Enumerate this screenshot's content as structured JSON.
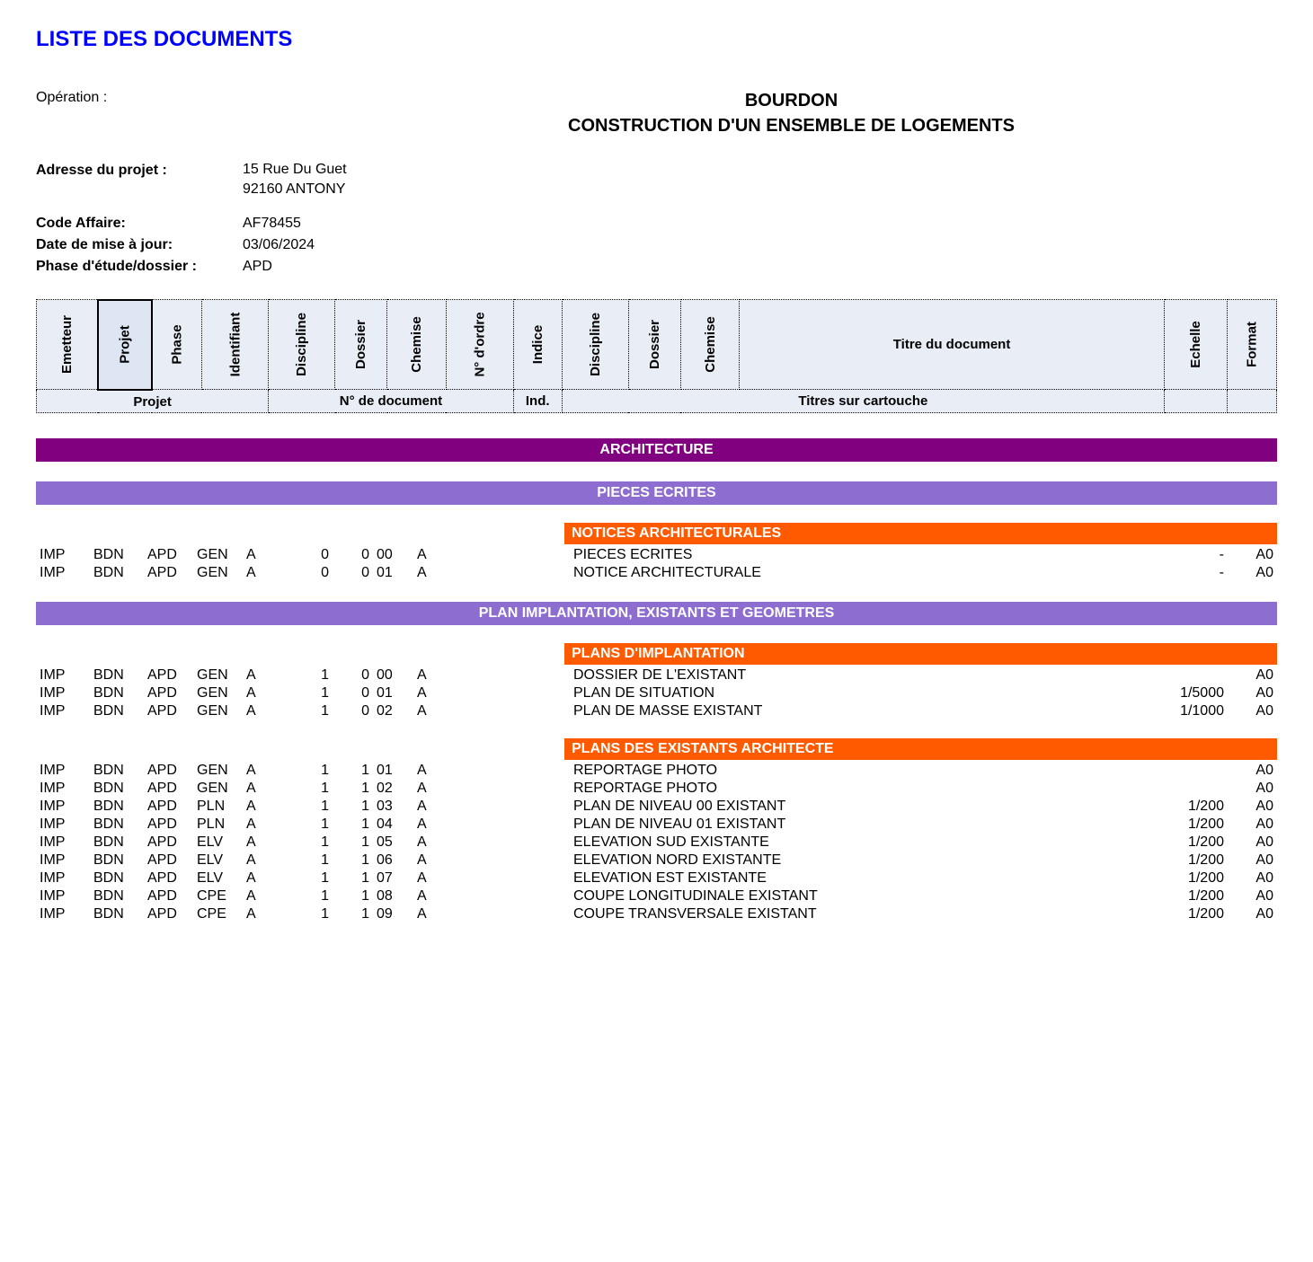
{
  "page_title": "LISTE DES DOCUMENTS",
  "labels": {
    "operation": "Opération :",
    "adresse": "Adresse du projet :",
    "code_affaire": "Code Affaire:",
    "date_maj": "Date de mise à jour:",
    "phase": "Phase d'étude/dossier :"
  },
  "operation": {
    "line1": "BOURDON",
    "line2": "CONSTRUCTION D'UN ENSEMBLE DE LOGEMENTS"
  },
  "adresse": {
    "line1": "15 Rue Du Guet",
    "line2": "92160 ANTONY"
  },
  "code_affaire": "AF78455",
  "date_maj": "03/06/2024",
  "phase": "APD",
  "header_row1": {
    "emetteur": "Emetteur",
    "projet": "Projet",
    "phase": "Phase",
    "identifiant": "Identifiant",
    "discipline": "Discipline",
    "dossier": "Dossier",
    "chemise": "Chemise",
    "n_ordre": "N° d'ordre",
    "indice": "Indice",
    "discipline2": "Discipline",
    "dossier2": "Dossier",
    "chemise2": "Chemise",
    "titre": "Titre du document",
    "echelle": "Echelle",
    "format": "Format"
  },
  "header_row2": {
    "projet": "Projet",
    "n_doc": "N° de document",
    "ind": "Ind.",
    "titres": "Titres sur cartouche"
  },
  "colors": {
    "title": "#0000ff",
    "section_dark": "#800080",
    "section_med": "#8d6ed0",
    "subhead": "#ff5a00",
    "header_bg": "#e9eef6"
  },
  "sections": [
    {
      "level": "dark",
      "label": "ARCHITECTURE",
      "children": [
        {
          "level": "med",
          "label": "PIECES ECRITES",
          "children": [
            {
              "level": "sub",
              "label": "NOTICES ARCHITECTURALES",
              "rows": [
                {
                  "emet": "IMP",
                  "proj": "BDN",
                  "phase": "APD",
                  "ident": "GEN",
                  "disc": "A",
                  "doss": "0",
                  "chem": "0",
                  "nord": "00",
                  "ind": "A",
                  "tit": "PIECES ECRITES",
                  "ech": "-",
                  "fmt": "A0"
                },
                {
                  "emet": "IMP",
                  "proj": "BDN",
                  "phase": "APD",
                  "ident": "GEN",
                  "disc": "A",
                  "doss": "0",
                  "chem": "0",
                  "nord": "01",
                  "ind": "A",
                  "tit": "NOTICE ARCHITECTURALE",
                  "ech": "-",
                  "fmt": "A0"
                }
              ]
            }
          ]
        },
        {
          "level": "med",
          "label": "PLAN IMPLANTATION, EXISTANTS ET GEOMETRES",
          "children": [
            {
              "level": "sub",
              "label": "PLANS  D'IMPLANTATION",
              "rows": [
                {
                  "emet": "IMP",
                  "proj": "BDN",
                  "phase": "APD",
                  "ident": "GEN",
                  "disc": "A",
                  "doss": "1",
                  "chem": "0",
                  "nord": "00",
                  "ind": "A",
                  "tit": "DOSSIER DE L'EXISTANT",
                  "ech": "",
                  "fmt": "A0"
                },
                {
                  "emet": "IMP",
                  "proj": "BDN",
                  "phase": "APD",
                  "ident": "GEN",
                  "disc": "A",
                  "doss": "1",
                  "chem": "0",
                  "nord": "01",
                  "ind": "A",
                  "tit": "PLAN DE SITUATION",
                  "ech": "1/5000",
                  "fmt": "A0"
                },
                {
                  "emet": "IMP",
                  "proj": "BDN",
                  "phase": "APD",
                  "ident": "GEN",
                  "disc": "A",
                  "doss": "1",
                  "chem": "0",
                  "nord": "02",
                  "ind": "A",
                  "tit": "PLAN DE MASSE EXISTANT",
                  "ech": "1/1000",
                  "fmt": "A0"
                }
              ]
            },
            {
              "level": "sub",
              "label": "PLANS  DES EXISTANTS ARCHITECTE",
              "rows": [
                {
                  "emet": "IMP",
                  "proj": "BDN",
                  "phase": "APD",
                  "ident": "GEN",
                  "disc": "A",
                  "doss": "1",
                  "chem": "1",
                  "nord": "01",
                  "ind": "A",
                  "tit": "REPORTAGE PHOTO",
                  "ech": "",
                  "fmt": "A0"
                },
                {
                  "emet": "IMP",
                  "proj": "BDN",
                  "phase": "APD",
                  "ident": "GEN",
                  "disc": "A",
                  "doss": "1",
                  "chem": "1",
                  "nord": "02",
                  "ind": "A",
                  "tit": "REPORTAGE PHOTO",
                  "ech": "",
                  "fmt": "A0"
                },
                {
                  "emet": "IMP",
                  "proj": "BDN",
                  "phase": "APD",
                  "ident": "PLN",
                  "disc": "A",
                  "doss": "1",
                  "chem": "1",
                  "nord": "03",
                  "ind": "A",
                  "tit": "PLAN DE NIVEAU 00 EXISTANT",
                  "ech": "1/200",
                  "fmt": "A0"
                },
                {
                  "emet": "IMP",
                  "proj": "BDN",
                  "phase": "APD",
                  "ident": "PLN",
                  "disc": "A",
                  "doss": "1",
                  "chem": "1",
                  "nord": "04",
                  "ind": "A",
                  "tit": "PLAN DE NIVEAU 01 EXISTANT",
                  "ech": "1/200",
                  "fmt": "A0"
                },
                {
                  "emet": "IMP",
                  "proj": "BDN",
                  "phase": "APD",
                  "ident": "ELV",
                  "disc": "A",
                  "doss": "1",
                  "chem": "1",
                  "nord": "05",
                  "ind": "A",
                  "tit": "ELEVATION SUD EXISTANTE",
                  "ech": "1/200",
                  "fmt": "A0"
                },
                {
                  "emet": "IMP",
                  "proj": "BDN",
                  "phase": "APD",
                  "ident": "ELV",
                  "disc": "A",
                  "doss": "1",
                  "chem": "1",
                  "nord": "06",
                  "ind": "A",
                  "tit": "ELEVATION NORD EXISTANTE",
                  "ech": "1/200",
                  "fmt": "A0"
                },
                {
                  "emet": "IMP",
                  "proj": "BDN",
                  "phase": "APD",
                  "ident": "ELV",
                  "disc": "A",
                  "doss": "1",
                  "chem": "1",
                  "nord": "07",
                  "ind": "A",
                  "tit": "ELEVATION EST EXISTANTE",
                  "ech": "1/200",
                  "fmt": "A0"
                },
                {
                  "emet": "IMP",
                  "proj": "BDN",
                  "phase": "APD",
                  "ident": "CPE",
                  "disc": "A",
                  "doss": "1",
                  "chem": "1",
                  "nord": "08",
                  "ind": "A",
                  "tit": "COUPE LONGITUDINALE EXISTANT",
                  "ech": "1/200",
                  "fmt": "A0"
                },
                {
                  "emet": "IMP",
                  "proj": "BDN",
                  "phase": "APD",
                  "ident": "CPE",
                  "disc": "A",
                  "doss": "1",
                  "chem": "1",
                  "nord": "09",
                  "ind": "A",
                  "tit": "COUPE TRANSVERSALE EXISTANT",
                  "ech": "1/200",
                  "fmt": "A0"
                }
              ]
            }
          ]
        }
      ]
    }
  ]
}
